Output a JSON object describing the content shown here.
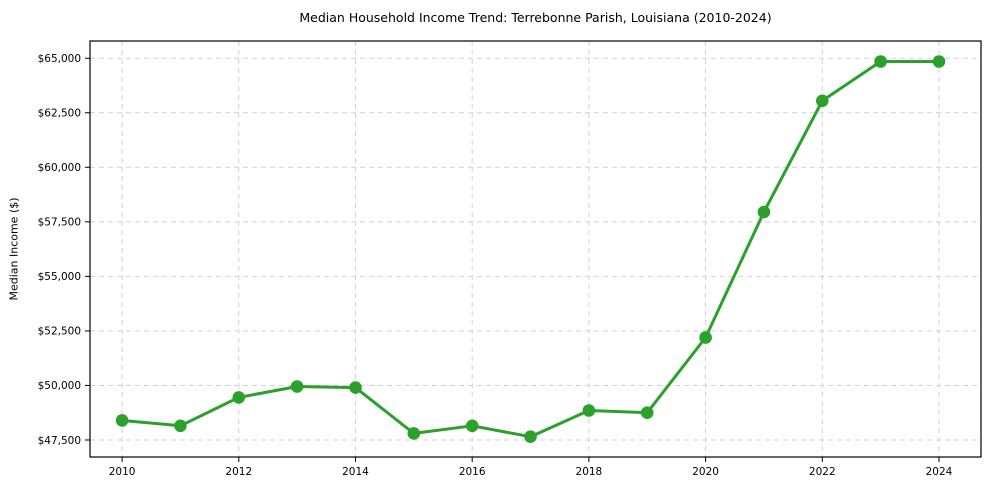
{
  "chart_data": {
    "type": "line",
    "title": "Median Household Income Trend: Terrebonne Parish, Louisiana (2010-2024)",
    "xlabel": "",
    "ylabel": "Median Income ($)",
    "x": [
      2010,
      2011,
      2012,
      2013,
      2014,
      2015,
      2016,
      2017,
      2018,
      2019,
      2020,
      2021,
      2022,
      2023,
      2024
    ],
    "series": [
      {
        "name": "Median Household Income",
        "values": [
          48400,
          48150,
          49450,
          49950,
          49900,
          47800,
          48150,
          47650,
          48850,
          48750,
          52200,
          57950,
          63050,
          64850,
          64850
        ],
        "color": "#2ca02c",
        "marker": "circle",
        "line_width": 3,
        "marker_radius": 6.3
      }
    ],
    "xticks": {
      "values": [
        2010,
        2012,
        2014,
        2016,
        2018,
        2020,
        2022,
        2024
      ],
      "labels": [
        "2010",
        "2012",
        "2014",
        "2016",
        "2018",
        "2020",
        "2022",
        "2024"
      ]
    },
    "yticks": {
      "values": [
        47500,
        50000,
        52500,
        55000,
        57500,
        60000,
        62500,
        65000
      ],
      "labels": [
        "$47,500",
        "$50,000",
        "$52,500",
        "$55,000",
        "$57,500",
        "$60,000",
        "$62,500",
        "$65,000"
      ]
    },
    "xlim": [
      2009.45,
      2024.72
    ],
    "ylim": [
      46720,
      65790
    ],
    "grid": true,
    "grid_style": "dashed",
    "legend": "none",
    "colors": {
      "line": "#2ca02c",
      "grid": "#d2d2d2",
      "spine": "#000000",
      "text": "#000000",
      "background": "#ffffff"
    }
  }
}
